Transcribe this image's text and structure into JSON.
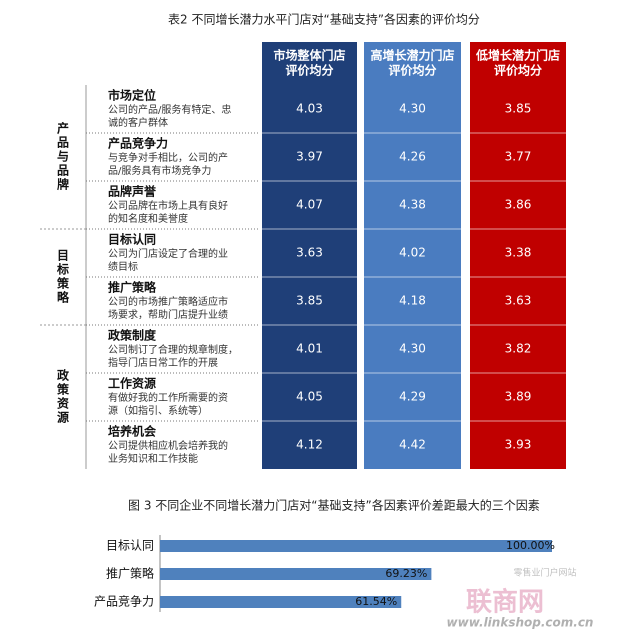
{
  "table": {
    "title": "表2 不同增长潜力水平门店对“基础支持”各因素的评价均分",
    "columns": [
      [
        "市场整体门店",
        "评价均分"
      ],
      [
        "高增长潜力门店",
        "评价均分"
      ],
      [
        "低增长潜力门店",
        "评价均分"
      ]
    ],
    "groups": [
      {
        "label": "产品与品牌",
        "rows": [
          0,
          1,
          2
        ]
      },
      {
        "label": "目标策略",
        "rows": [
          3,
          4
        ]
      },
      {
        "label": "政策资源",
        "rows": [
          5,
          6,
          7
        ]
      }
    ],
    "rows": [
      {
        "name": "市场定位",
        "desc": [
          "公司的产品/服务有特定、忠",
          "诚的客户群体"
        ],
        "cells": [
          "4.03",
          "4.30",
          "3.85"
        ]
      },
      {
        "name": "产品竞争力",
        "desc": [
          "与竞争对手相比，公司的产",
          "品/服务具有市场竞争力"
        ],
        "cells": [
          "3.97",
          "4.26",
          "3.77"
        ]
      },
      {
        "name": "品牌声誉",
        "desc": [
          "公司品牌在市场上具有良好",
          "的知名度和美誉度"
        ],
        "cells": [
          "4.07",
          "4.38",
          "3.86"
        ]
      },
      {
        "name": "目标认同",
        "desc": [
          "公司为门店设定了合理的业",
          "绩目标"
        ],
        "cells": [
          "3.63",
          "4.02",
          "3.38"
        ]
      },
      {
        "name": "推广策略",
        "desc": [
          "公司的市场推广策略适应市",
          "场要求，帮助门店提升业绩"
        ],
        "cells": [
          "3.85",
          "4.18",
          "3.63"
        ]
      },
      {
        "name": "政策制度",
        "desc": [
          "公司制订了合理的规章制度，",
          "指导门店日常工作的开展"
        ],
        "cells": [
          "4.01",
          "4.30",
          "3.82"
        ]
      },
      {
        "name": "工作资源",
        "desc": [
          "有做好我的工作所需要的资",
          "源（如指引、系统等）"
        ],
        "cells": [
          "4.05",
          "4.29",
          "3.89"
        ]
      },
      {
        "name": "培养机会",
        "desc": [
          "公司提供相应机会培养我的",
          "业务知识和工作技能"
        ],
        "cells": [
          "4.12",
          "4.42",
          "3.93"
        ]
      }
    ]
  },
  "chart_data": {
    "type": "hbar",
    "title": "图 3  不同企业不同增长潜力门店对“基础支持”各因素评价差距最大的三个因素",
    "categories": [
      "目标认同",
      "推广策略",
      "产品竞争力"
    ],
    "values": [
      100,
      69.23,
      61.54
    ],
    "value_labels": [
      "100.00%",
      "69.23%",
      "61.54%"
    ],
    "color": "#4f81bd",
    "xlim": [
      0,
      100
    ]
  },
  "watermark": {
    "name": "联商网",
    "tagline": "零售业门户网站",
    "url": "www.linkshop.com.cn"
  }
}
